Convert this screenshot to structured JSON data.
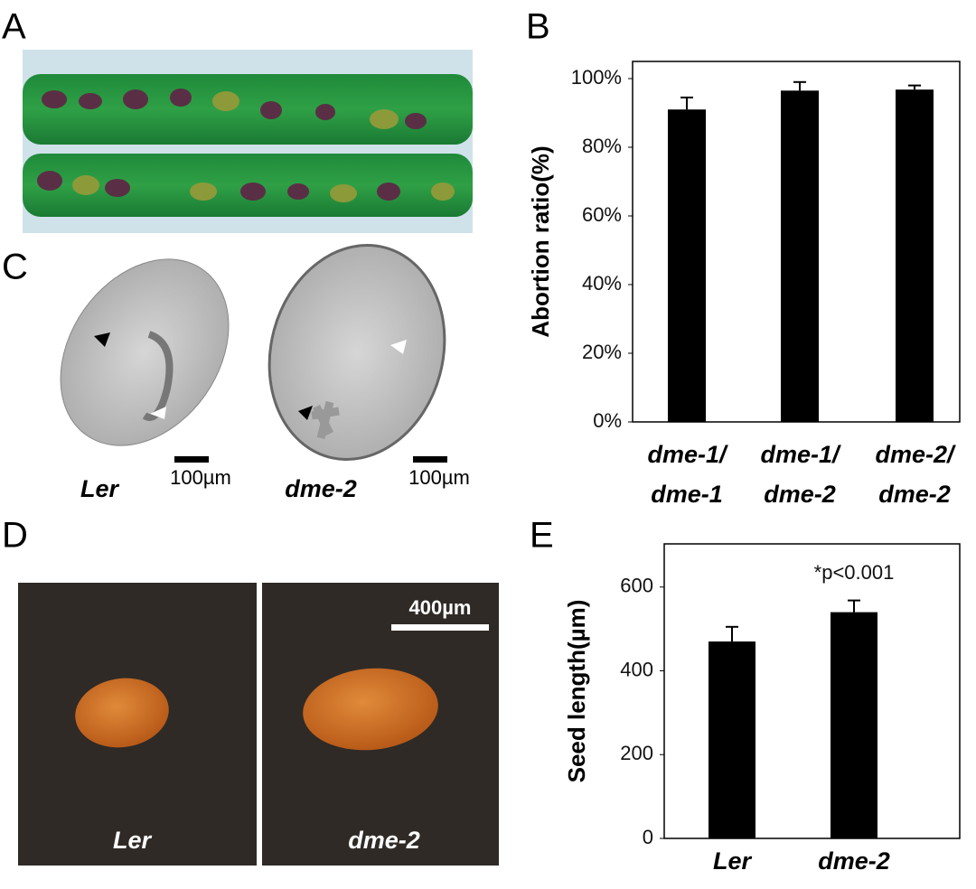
{
  "panel_labels": [
    "A",
    "B",
    "C",
    "D",
    "E"
  ],
  "panel_c": {
    "left_label": "Ler",
    "left_scale": "100µm",
    "right_label": "dme-2",
    "right_scale": "100µm"
  },
  "panel_d": {
    "left_label": "Ler",
    "right_label": "dme-2",
    "scale": "400µm"
  },
  "chart_data": [
    {
      "type": "bar",
      "y_label": "Abortion ratio(%)",
      "categories": [
        [
          "dme-1/",
          "dme-1"
        ],
        [
          "dme-1/",
          "dme-2"
        ],
        [
          "dme-2/",
          "dme-2"
        ]
      ],
      "values": [
        91,
        96.5,
        96.8
      ],
      "errors": [
        3.5,
        2.5,
        1.2
      ],
      "color": "#000000",
      "ylim": [
        0,
        105
      ],
      "yticks": [
        {
          "value": 0,
          "label": "0%"
        },
        {
          "value": 20,
          "label": "20%"
        },
        {
          "value": 40,
          "label": "40%"
        },
        {
          "value": 60,
          "label": "60%"
        },
        {
          "value": 80,
          "label": "80%"
        },
        {
          "value": 100,
          "label": "100%"
        }
      ]
    },
    {
      "type": "bar",
      "y_label": "Seed length(µm)",
      "annotation": "*p<0.001",
      "categories": [
        [
          "Ler"
        ],
        [
          "dme-2"
        ]
      ],
      "values": [
        470,
        540
      ],
      "errors": [
        35,
        28
      ],
      "color": "#000000",
      "ylim": [
        0,
        703
      ],
      "yticks": [
        0,
        200,
        400,
        600
      ]
    }
  ]
}
